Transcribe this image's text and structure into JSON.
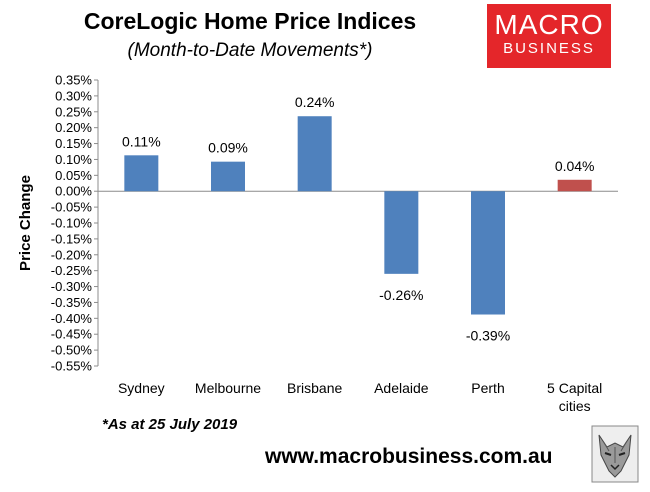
{
  "header": {
    "title": "CoreLogic Home Price Indices",
    "subtitle": "(Month-to-Date Movements*)"
  },
  "logo": {
    "line1": "MACRO",
    "line2": "BUSINESS",
    "color": "#e4262a"
  },
  "footer": {
    "note": "*As at 25 July 2019",
    "website": "www.macrobusiness.com.au"
  },
  "chart_data": {
    "type": "bar",
    "ylabel": "Price Change",
    "ylim": [
      -0.55,
      0.35
    ],
    "ytick_step": 0.05,
    "ytick_labels": [
      "0.35%",
      "0.30%",
      "0.25%",
      "0.20%",
      "0.15%",
      "0.10%",
      "0.05%",
      "0.00%",
      "-0.05%",
      "-0.10%",
      "-0.15%",
      "-0.20%",
      "-0.25%",
      "-0.30%",
      "-0.35%",
      "-0.40%",
      "-0.45%",
      "-0.50%",
      "-0.55%"
    ],
    "categories": [
      [
        "Sydney"
      ],
      [
        "Melbourne"
      ],
      [
        "Brisbane"
      ],
      [
        "Adelaide"
      ],
      [
        "Perth"
      ],
      [
        "5 Capital",
        "cities"
      ]
    ],
    "values": [
      0.113,
      0.093,
      0.236,
      -0.26,
      -0.388,
      0.036
    ],
    "data_labels": [
      "0.11%",
      "0.09%",
      "0.24%",
      "-0.26%",
      "-0.39%",
      "0.04%"
    ],
    "colors": [
      "#4f81bd",
      "#4f81bd",
      "#4f81bd",
      "#4f81bd",
      "#4f81bd",
      "#c0504d"
    ],
    "grid": false
  }
}
